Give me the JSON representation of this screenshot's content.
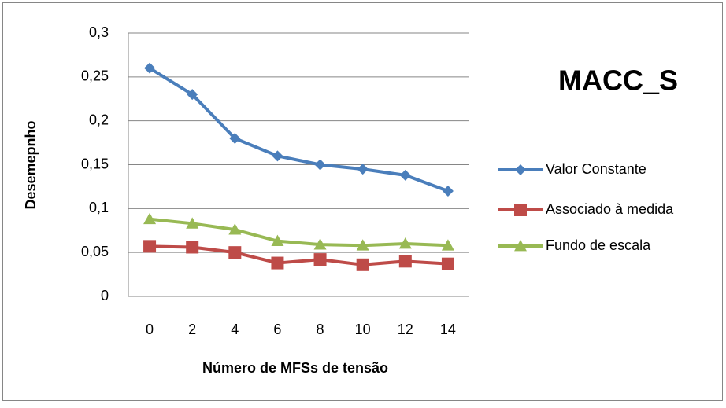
{
  "chart_data": {
    "type": "line",
    "title": "MACC_S",
    "x_label": "Número de MFSs de tensão",
    "y_label": "Desemepnho",
    "categories": [
      "0",
      "2",
      "4",
      "6",
      "8",
      "10",
      "12",
      "14"
    ],
    "ylim": [
      0,
      0.3
    ],
    "yticks": [
      0,
      {
        "value": 0.05,
        "label": "0,05"
      },
      {
        "value": 0.1,
        "label": "0,1"
      },
      {
        "value": 0.15,
        "label": "0,15"
      },
      {
        "value": 0.2,
        "label": "0,2"
      },
      {
        "value": 0.25,
        "label": "0,25"
      },
      {
        "value": 0.3,
        "label": "0,3"
      }
    ],
    "grid": true,
    "legend": "right",
    "series": [
      {
        "name": "Valor Constante",
        "color": "#4a7ebb",
        "marker": "diamond",
        "values": [
          0.26,
          0.23,
          0.18,
          0.16,
          0.15,
          0.145,
          0.138,
          0.12
        ]
      },
      {
        "name": "Associado à medida",
        "color": "#be4b48",
        "marker": "square",
        "values": [
          0.057,
          0.056,
          0.05,
          0.038,
          0.042,
          0.036,
          0.04,
          0.037
        ]
      },
      {
        "name": "Fundo de escala",
        "color": "#98b954",
        "marker": "triangle",
        "values": [
          0.088,
          0.083,
          0.076,
          0.063,
          0.059,
          0.058,
          0.06,
          0.058
        ]
      }
    ]
  }
}
